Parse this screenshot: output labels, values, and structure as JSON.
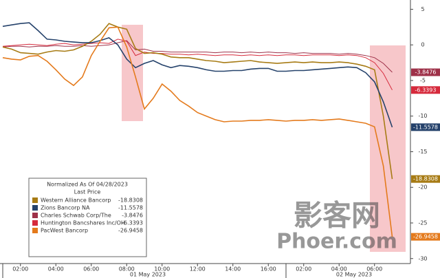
{
  "chart_data": {
    "type": "line",
    "legend_title": "Normalized As Of 04/28/2023",
    "legend_subtitle": "Last Price",
    "date_labels": [
      "01 May 2023",
      "02 May 2023"
    ],
    "categories": [
      null,
      null,
      "02:00",
      null,
      null,
      null,
      "04:00",
      null,
      null,
      null,
      "06:00",
      null,
      null,
      null,
      "08:00",
      null,
      null,
      null,
      "10:00",
      null,
      null,
      null,
      "12:00",
      null,
      null,
      null,
      "14:00",
      null,
      null,
      null,
      "16:00",
      null,
      null,
      null,
      "02:00",
      null,
      null,
      null,
      "04:00",
      null,
      null,
      null,
      "06:00",
      null,
      null,
      null,
      null
    ],
    "ylim": [
      -30.7,
      6.3
    ],
    "yticks": [
      5,
      0,
      -5,
      -10,
      -15,
      -20,
      -25,
      -30
    ],
    "y_axis_side": "right",
    "series": [
      {
        "name": "Western Alliance Bancorp",
        "color": "#a77b14",
        "values": [
          -0.3,
          -0.6,
          -1.1,
          -1.2,
          -1.3,
          -1.0,
          -0.8,
          -0.9,
          -0.7,
          -0.2,
          0.5,
          1.5,
          3.0,
          2.5,
          2.2,
          -0.5,
          -1.2,
          -1.1,
          -1.3,
          -1.7,
          -1.8,
          -1.8,
          -2.0,
          -2.2,
          -2.3,
          -2.5,
          -2.4,
          -2.3,
          -2.2,
          -2.4,
          -2.5,
          -2.6,
          -2.5,
          -2.4,
          -2.5,
          -2.4,
          -2.5,
          -2.5,
          -2.4,
          -2.5,
          -2.7,
          -3.0,
          -3.5,
          -10.0,
          -18.8308,
          null,
          null
        ]
      },
      {
        "name": "Zions Bancorp NA",
        "color": "#25426b",
        "values": [
          2.6,
          2.8,
          3.0,
          3.1,
          2.0,
          0.8,
          0.7,
          0.5,
          0.4,
          0.3,
          0.3,
          0.6,
          1.0,
          0.0,
          -2.0,
          -3.2,
          -2.6,
          -2.2,
          -2.8,
          -3.2,
          -2.9,
          -3.0,
          -3.2,
          -3.5,
          -3.7,
          -3.7,
          -3.6,
          -3.6,
          -3.4,
          -3.3,
          -3.3,
          -3.7,
          -3.7,
          -3.6,
          -3.6,
          -3.5,
          -3.4,
          -3.3,
          -3.2,
          -3.1,
          -3.2,
          -3.9,
          -5.2,
          -8.0,
          -11.5578,
          null,
          null
        ]
      },
      {
        "name": "Charles Schwab Corp/The",
        "color": "#9e3149",
        "values": [
          -0.3,
          -0.2,
          -0.2,
          -0.3,
          -0.2,
          -0.2,
          -0.1,
          -0.2,
          -0.2,
          -0.1,
          -0.2,
          -0.1,
          0.0,
          0.3,
          0.6,
          -0.7,
          -0.6,
          -0.9,
          -0.9,
          -1.0,
          -1.0,
          -1.0,
          -1.0,
          -1.0,
          -1.1,
          -1.0,
          -1.0,
          -1.1,
          -1.0,
          -1.1,
          -1.0,
          -1.1,
          -1.1,
          -1.2,
          -1.1,
          -1.2,
          -1.2,
          -1.2,
          -1.3,
          -1.2,
          -1.3,
          -1.5,
          -1.8,
          -2.6,
          -3.8476,
          null,
          null
        ]
      },
      {
        "name": "Huntington Bancshares Inc/OH",
        "color": "#d62a3c",
        "values": [
          -0.2,
          -0.1,
          0.0,
          0.1,
          0.0,
          -0.1,
          0.1,
          0.2,
          0.0,
          0.1,
          0.2,
          0.3,
          0.2,
          0.8,
          0.5,
          -1.5,
          -1.0,
          -1.2,
          -1.2,
          -1.3,
          -1.3,
          -1.4,
          -1.3,
          -1.4,
          -1.5,
          -1.4,
          -1.4,
          -1.5,
          -1.4,
          -1.5,
          -1.4,
          -1.5,
          -1.4,
          -1.4,
          -1.5,
          -1.4,
          -1.4,
          -1.4,
          -1.5,
          -1.4,
          -1.5,
          -1.8,
          -2.5,
          -4.0,
          -6.3393,
          null,
          null
        ]
      },
      {
        "name": "PacWest Bancorp",
        "color": "#e47a1c",
        "values": [
          -1.8,
          -2.0,
          -2.1,
          -1.6,
          -1.5,
          -2.3,
          -3.5,
          -4.8,
          -5.7,
          -4.5,
          -1.5,
          0.5,
          2.4,
          2.5,
          -0.3,
          -4.5,
          -9.0,
          -7.5,
          -5.5,
          -6.5,
          -7.8,
          -8.6,
          -9.5,
          -10.0,
          -10.5,
          -10.8,
          -10.7,
          -10.7,
          -10.6,
          -10.6,
          -10.5,
          -10.6,
          -10.7,
          -10.6,
          -10.6,
          -10.5,
          -10.6,
          -10.5,
          -10.4,
          -10.6,
          -10.8,
          -11.0,
          -11.5,
          -17.0,
          -26.9458,
          null,
          null
        ]
      }
    ]
  },
  "watermark": {
    "text": "影客网",
    "site": "Phoer.com"
  }
}
